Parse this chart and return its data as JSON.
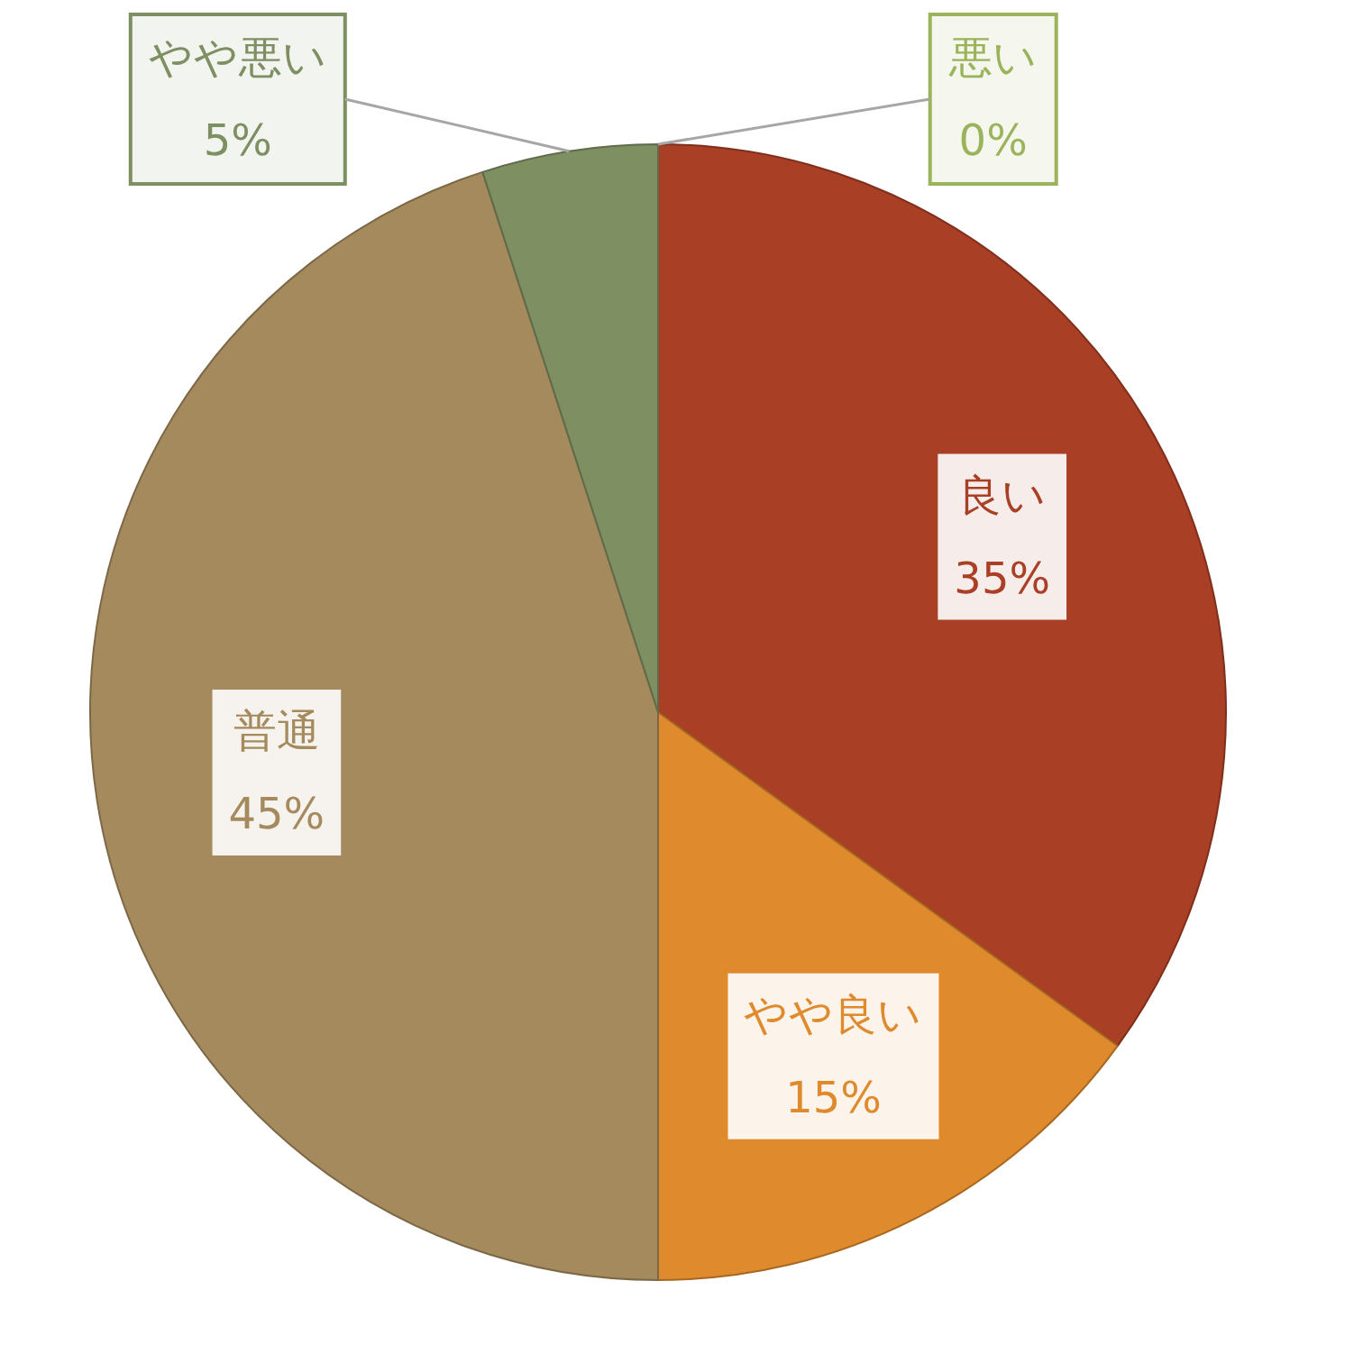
{
  "chart_data": {
    "type": "pie",
    "categories": [
      "良い",
      "やや良い",
      "普通",
      "やや悪い",
      "悪い"
    ],
    "values": [
      35,
      15,
      45,
      5,
      0
    ],
    "colors": [
      "#a93f24",
      "#df8a2c",
      "#a58a5d",
      "#7e8f62",
      "#9bb35a"
    ],
    "value_labels": [
      "35%",
      "15%",
      "45%",
      "5%",
      "0%"
    ]
  }
}
